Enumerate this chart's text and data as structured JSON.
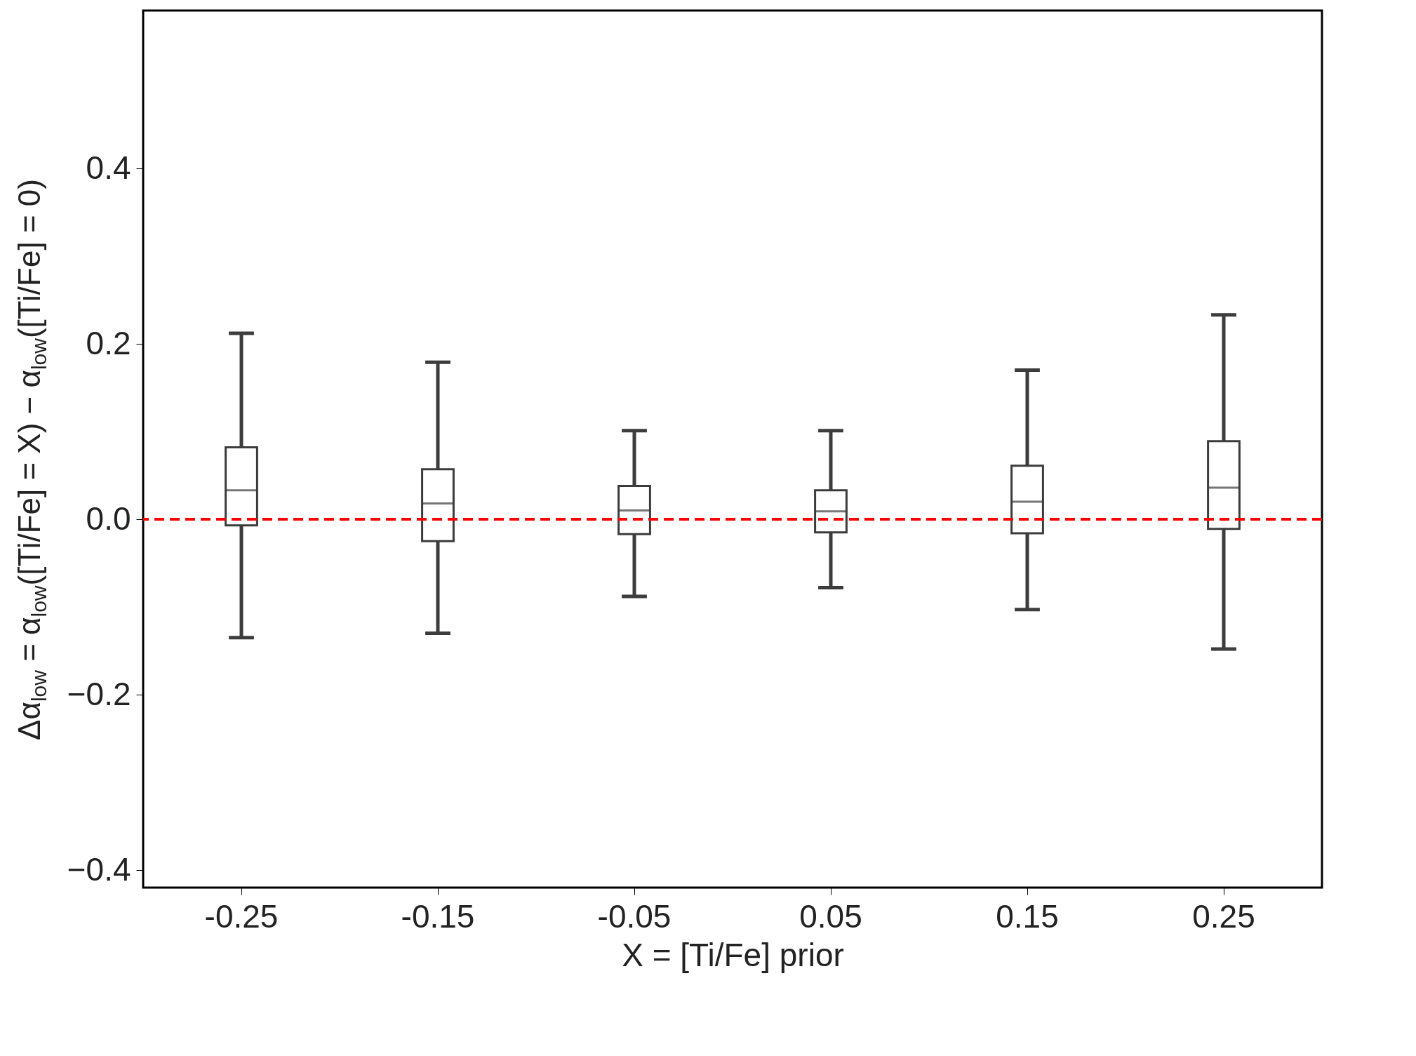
{
  "chart_data": {
    "type": "box",
    "xlabel": "X = [Ti/Fe] prior",
    "ylabel": "Δα$_{low}$ = α$_{low}$([Ti/Fe] = X) − α$_{low}$([Ti/Fe] = 0)",
    "categories": [
      "-0.25",
      "-0.15",
      "-0.05",
      "0.05",
      "0.15",
      "0.25"
    ],
    "boxes": [
      {
        "low": -0.135,
        "q1": -0.007,
        "median": 0.033,
        "q3": 0.082,
        "high": 0.212
      },
      {
        "low": -0.13,
        "q1": -0.025,
        "median": 0.018,
        "q3": 0.057,
        "high": 0.179
      },
      {
        "low": -0.088,
        "q1": -0.017,
        "median": 0.01,
        "q3": 0.038,
        "high": 0.101
      },
      {
        "low": -0.078,
        "q1": -0.015,
        "median": 0.009,
        "q3": 0.033,
        "high": 0.101
      },
      {
        "low": -0.103,
        "q1": -0.016,
        "median": 0.02,
        "q3": 0.061,
        "high": 0.17
      },
      {
        "low": -0.148,
        "q1": -0.011,
        "median": 0.036,
        "q3": 0.089,
        "high": 0.233
      }
    ],
    "ylim": [
      -0.42,
      0.58
    ],
    "yticks": [
      {
        "value": -0.4,
        "label": "−0.4"
      },
      {
        "value": -0.2,
        "label": "−0.2"
      },
      {
        "value": 0,
        "label": "0.0"
      },
      0.2,
      0.4
    ],
    "ref_lines": [
      {
        "axis": "y",
        "value": 0,
        "color": "#ff0000",
        "line_style": "dashed"
      }
    ],
    "grid": false
  }
}
